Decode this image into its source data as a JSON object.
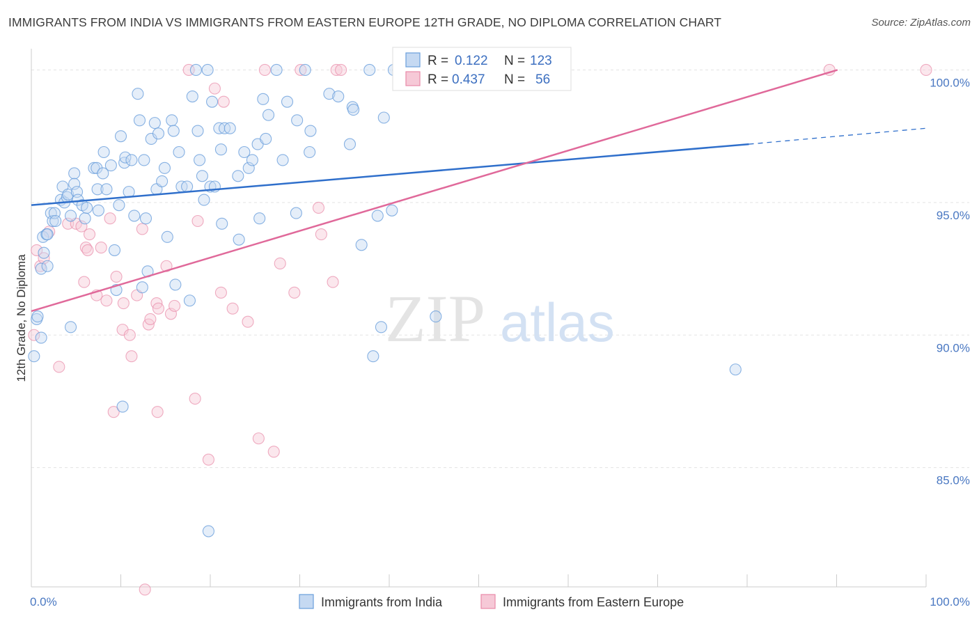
{
  "title": "IMMIGRANTS FROM INDIA VS IMMIGRANTS FROM EASTERN EUROPE 12TH GRADE, NO DIPLOMA CORRELATION CHART",
  "source": "Source: ZipAtlas.com",
  "watermark": {
    "zip": "ZIP",
    "atlas": "atlas"
  },
  "colors": {
    "blue": "#6a9fdc",
    "blue_fill": "#c5d9f2",
    "blue_line": "#2f6fcb",
    "pink": "#e88aa8",
    "pink_fill": "#f6c9d7",
    "pink_line": "#e0699a",
    "tick": "#4a78c2"
  },
  "legend": {
    "r_label": "R =",
    "n_label": "N =",
    "rows": [
      {
        "r": "0.122",
        "n": "123"
      },
      {
        "r": "0.437",
        "n": "56"
      }
    ]
  },
  "chart_data": {
    "type": "scatter",
    "title": "IMMIGRANTS FROM INDIA VS IMMIGRANTS FROM EASTERN EUROPE 12TH GRADE, NO DIPLOMA CORRELATION CHART",
    "xlabel": "",
    "ylabel": "12th Grade, No Diploma",
    "xlim": [
      0,
      100
    ],
    "ylim": [
      80.5,
      100.8
    ],
    "x_tick_labels": [
      "0.0%",
      "100.0%"
    ],
    "y_ticks": [
      85,
      90,
      95,
      100
    ],
    "y_tick_labels": [
      "85.0%",
      "90.0%",
      "95.0%",
      "100.0%"
    ],
    "grid": true,
    "legend_position": "top-center",
    "series": [
      {
        "name": "Immigrants from India",
        "color": "#6a9fdc",
        "trend": {
          "x": [
            0,
            80.2
          ],
          "y": [
            94.9,
            97.2
          ],
          "dash_to": [
            100,
            97.8
          ]
        },
        "points": [
          [
            0.3,
            89.2
          ],
          [
            0.6,
            90.6
          ],
          [
            0.7,
            90.7
          ],
          [
            1.1,
            89.9
          ],
          [
            1.1,
            92.5
          ],
          [
            1.3,
            93.7
          ],
          [
            1.4,
            93.1
          ],
          [
            1.7,
            93.8
          ],
          [
            1.8,
            92.6
          ],
          [
            1.8,
            93.8
          ],
          [
            2.2,
            94.6
          ],
          [
            2.4,
            94.3
          ],
          [
            2.6,
            94.6
          ],
          [
            2.7,
            94.3
          ],
          [
            3.3,
            95.1
          ],
          [
            3.5,
            95.6
          ],
          [
            3.7,
            95.0
          ],
          [
            4.0,
            95.2
          ],
          [
            4.1,
            95.3
          ],
          [
            4.4,
            94.5
          ],
          [
            4.4,
            90.3
          ],
          [
            4.8,
            96.1
          ],
          [
            4.8,
            95.7
          ],
          [
            5.1,
            95.4
          ],
          [
            5.2,
            95.1
          ],
          [
            5.7,
            94.9
          ],
          [
            6.0,
            94.4
          ],
          [
            6.2,
            94.8
          ],
          [
            7.0,
            96.3
          ],
          [
            7.3,
            96.3
          ],
          [
            7.4,
            95.5
          ],
          [
            7.5,
            94.7
          ],
          [
            8.0,
            96.1
          ],
          [
            8.1,
            96.9
          ],
          [
            8.4,
            95.5
          ],
          [
            8.9,
            96.4
          ],
          [
            9.3,
            93.2
          ],
          [
            9.5,
            91.7
          ],
          [
            9.8,
            94.9
          ],
          [
            10.0,
            97.5
          ],
          [
            10.2,
            87.3
          ],
          [
            10.4,
            96.5
          ],
          [
            10.5,
            96.7
          ],
          [
            10.9,
            95.4
          ],
          [
            11.2,
            96.6
          ],
          [
            11.5,
            94.5
          ],
          [
            11.9,
            99.1
          ],
          [
            12.1,
            98.1
          ],
          [
            12.4,
            91.8
          ],
          [
            12.6,
            96.6
          ],
          [
            12.8,
            94.4
          ],
          [
            13.0,
            92.4
          ],
          [
            13.4,
            97.4
          ],
          [
            13.8,
            98.0
          ],
          [
            14.0,
            95.5
          ],
          [
            14.2,
            97.6
          ],
          [
            14.6,
            95.8
          ],
          [
            14.9,
            96.3
          ],
          [
            15.2,
            93.7
          ],
          [
            15.7,
            98.1
          ],
          [
            15.9,
            97.7
          ],
          [
            16.1,
            91.9
          ],
          [
            16.5,
            96.9
          ],
          [
            16.8,
            95.6
          ],
          [
            17.4,
            95.6
          ],
          [
            17.7,
            91.3
          ],
          [
            18.0,
            99.0
          ],
          [
            18.4,
            100.0
          ],
          [
            18.6,
            97.7
          ],
          [
            18.8,
            96.6
          ],
          [
            19.1,
            96.0
          ],
          [
            19.3,
            95.1
          ],
          [
            19.7,
            100.0
          ],
          [
            19.8,
            82.6
          ],
          [
            20.0,
            95.6
          ],
          [
            20.2,
            98.8
          ],
          [
            20.5,
            95.6
          ],
          [
            21.0,
            97.8
          ],
          [
            21.2,
            97.0
          ],
          [
            21.3,
            94.2
          ],
          [
            21.6,
            97.8
          ],
          [
            22.2,
            97.8
          ],
          [
            23.1,
            96.0
          ],
          [
            23.2,
            93.6
          ],
          [
            23.8,
            96.9
          ],
          [
            24.3,
            96.3
          ],
          [
            24.7,
            96.6
          ],
          [
            25.3,
            97.2
          ],
          [
            25.5,
            94.4
          ],
          [
            25.9,
            98.9
          ],
          [
            26.2,
            97.4
          ],
          [
            26.5,
            98.3
          ],
          [
            27.4,
            100.0
          ],
          [
            28.1,
            96.6
          ],
          [
            28.6,
            98.8
          ],
          [
            29.6,
            94.6
          ],
          [
            29.7,
            98.1
          ],
          [
            30.6,
            100.0
          ],
          [
            31.1,
            96.9
          ],
          [
            31.2,
            97.7
          ],
          [
            33.3,
            99.1
          ],
          [
            34.3,
            99.0
          ],
          [
            35.6,
            97.2
          ],
          [
            35.9,
            98.6
          ],
          [
            36.0,
            98.5
          ],
          [
            36.9,
            93.4
          ],
          [
            37.8,
            100.0
          ],
          [
            38.2,
            89.2
          ],
          [
            38.7,
            94.5
          ],
          [
            39.1,
            90.3
          ],
          [
            39.4,
            98.2
          ],
          [
            40.3,
            94.7
          ],
          [
            40.5,
            100.0
          ],
          [
            41.0,
            100.0
          ],
          [
            41.5,
            100.0
          ],
          [
            42.0,
            100.0
          ],
          [
            42.5,
            100.0
          ],
          [
            43.0,
            100.0
          ],
          [
            45.2,
            90.7
          ],
          [
            78.7,
            88.7
          ],
          [
            46.0,
            100.0
          ],
          [
            46.5,
            100.0
          ],
          [
            47.0,
            100.0
          ]
        ]
      },
      {
        "name": "Immigrants from Eastern Europe",
        "color": "#e88aa8",
        "trend": {
          "x": [
            0,
            90.1
          ],
          "y": [
            90.9,
            100.0
          ]
        },
        "points": [
          [
            0.3,
            90.0
          ],
          [
            0.6,
            93.2
          ],
          [
            1.0,
            92.6
          ],
          [
            1.4,
            92.9
          ],
          [
            2.0,
            93.9
          ],
          [
            3.1,
            88.8
          ],
          [
            4.1,
            94.2
          ],
          [
            5.0,
            94.2
          ],
          [
            5.6,
            94.1
          ],
          [
            5.9,
            92.0
          ],
          [
            6.1,
            93.3
          ],
          [
            6.3,
            93.2
          ],
          [
            6.5,
            93.8
          ],
          [
            7.3,
            91.5
          ],
          [
            7.8,
            93.3
          ],
          [
            8.4,
            91.3
          ],
          [
            8.8,
            94.4
          ],
          [
            9.2,
            87.1
          ],
          [
            9.5,
            92.2
          ],
          [
            10.2,
            90.2
          ],
          [
            10.3,
            91.2
          ],
          [
            11.0,
            90.0
          ],
          [
            11.2,
            89.2
          ],
          [
            11.8,
            91.5
          ],
          [
            12.4,
            94.0
          ],
          [
            12.7,
            80.4
          ],
          [
            13.1,
            90.4
          ],
          [
            13.3,
            90.6
          ],
          [
            14.0,
            91.2
          ],
          [
            14.1,
            87.1
          ],
          [
            14.2,
            91.0
          ],
          [
            15.1,
            92.6
          ],
          [
            15.6,
            90.8
          ],
          [
            16.0,
            91.1
          ],
          [
            17.6,
            100.0
          ],
          [
            18.3,
            87.6
          ],
          [
            18.6,
            94.3
          ],
          [
            19.8,
            85.3
          ],
          [
            20.5,
            99.3
          ],
          [
            21.2,
            91.6
          ],
          [
            21.5,
            98.8
          ],
          [
            22.5,
            91.0
          ],
          [
            24.2,
            90.5
          ],
          [
            25.4,
            86.1
          ],
          [
            26.1,
            100.0
          ],
          [
            27.1,
            85.6
          ],
          [
            27.8,
            92.7
          ],
          [
            29.4,
            91.6
          ],
          [
            30.1,
            100.0
          ],
          [
            32.1,
            94.8
          ],
          [
            32.4,
            93.8
          ],
          [
            33.7,
            92.0
          ],
          [
            34.1,
            100.0
          ],
          [
            34.6,
            100.0
          ],
          [
            89.2,
            100.0
          ],
          [
            100.0,
            100.0
          ]
        ]
      }
    ]
  }
}
